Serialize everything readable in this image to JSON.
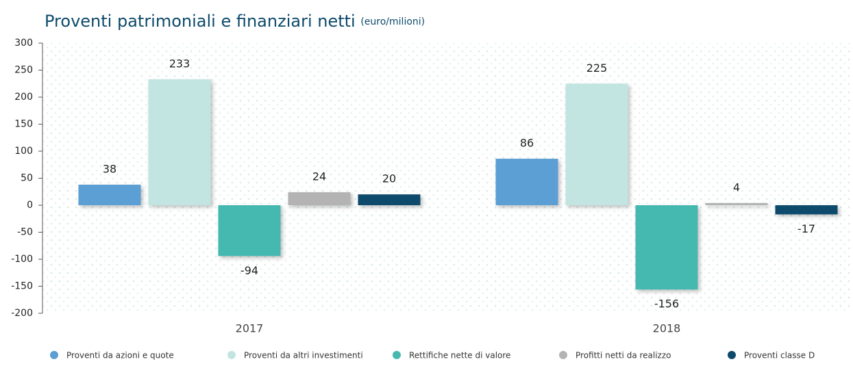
{
  "chart_data": {
    "type": "bar",
    "title": "Proventi patrimoniali e finanziari netti",
    "subtitle": "(euro/milioni)",
    "categories": [
      "2017",
      "2018"
    ],
    "series": [
      {
        "name": "Proventi da azioni e quote",
        "color": "#5b9fd4",
        "values": [
          38,
          86
        ]
      },
      {
        "name": "Proventi da altri investimenti",
        "color": "#c2e5e1",
        "values": [
          233,
          225
        ]
      },
      {
        "name": "Rettifiche nette di valore",
        "color": "#45b8b0",
        "values": [
          -94,
          -156
        ]
      },
      {
        "name": "Profitti netti da realizzo",
        "color": "#b3b3b3",
        "values": [
          24,
          4
        ]
      },
      {
        "name": "Proventi classe D",
        "color": "#0d4a6b",
        "values": [
          20,
          -17
        ]
      }
    ],
    "ylim": [
      -200,
      300
    ],
    "yticks": [
      -200,
      -150,
      -100,
      -50,
      0,
      50,
      100,
      150,
      200,
      250,
      300
    ]
  }
}
